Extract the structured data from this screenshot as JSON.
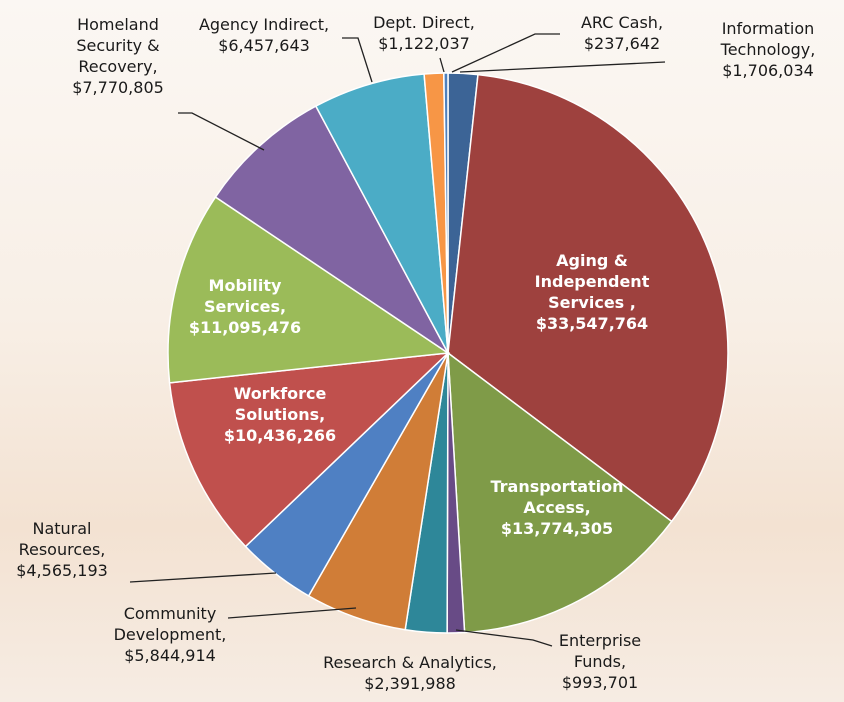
{
  "chart_data": {
    "type": "pie",
    "categories": [
      "Information Technology,",
      "Aging & Independent Services ,",
      "Transportation Access,",
      "Enterprise Funds,",
      "Research & Analytics,",
      "Community Development,",
      "Natural Resources,",
      "Workforce Solutions,",
      "Mobility Services,",
      "Homeland Security & Recovery,",
      "Agency Indirect,",
      "Dept. Direct,",
      "ARC Cash,"
    ],
    "values": [
      1706034,
      33547764,
      13774305,
      993701,
      2391988,
      5844914,
      4565193,
      10436266,
      11095476,
      7770805,
      6457643,
      1122037,
      237642
    ],
    "value_labels": [
      "$1,706,034",
      "$33,547,764",
      "$13,774,305",
      "$993,701",
      "$2,391,988",
      "$5,844,914",
      "$4,565,193",
      "$10,436,266",
      "$11,095,476",
      "$7,770,805",
      "$6,457,643",
      "$1,122,037",
      "$237,642"
    ],
    "colors": [
      "#3c6496",
      "#9e413e",
      "#7f9b48",
      "#684b86",
      "#2e8799",
      "#d07d37",
      "#4f80c3",
      "#c0504d",
      "#9bbb59",
      "#8064a2",
      "#4bacc6",
      "#f79646",
      "#4f81bd"
    ]
  }
}
